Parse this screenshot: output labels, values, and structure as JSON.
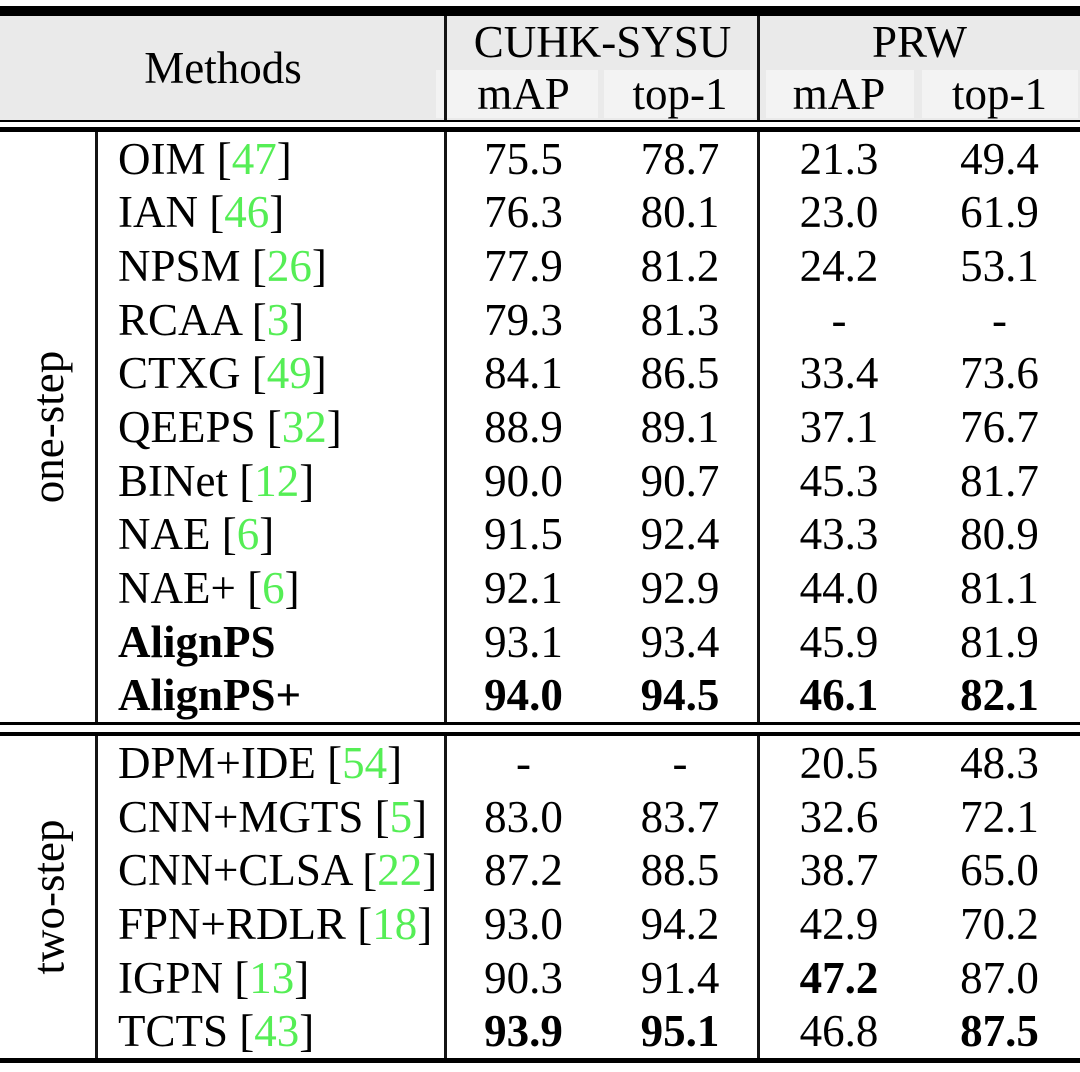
{
  "colors": {
    "citation_green": "#55ee55",
    "header_bg": "#eaeaea",
    "subheader_cell_bg": "#f3f3f3",
    "rule_black": "#000000"
  },
  "table": {
    "header": {
      "methods_label": "Methods",
      "groups": [
        {
          "label": "CUHK-SYSU",
          "sub_labels": [
            "mAP",
            "top-1"
          ]
        },
        {
          "label": "PRW",
          "sub_labels": [
            "mAP",
            "top-1"
          ]
        }
      ]
    },
    "sections": [
      {
        "label": "one-step",
        "rows": [
          {
            "method": "OIM",
            "cite": "47",
            "bold_method": false,
            "values": [
              "75.5",
              "78.7",
              "21.3",
              "49.4"
            ],
            "bold": [
              false,
              false,
              false,
              false
            ]
          },
          {
            "method": "IAN",
            "cite": "46",
            "bold_method": false,
            "values": [
              "76.3",
              "80.1",
              "23.0",
              "61.9"
            ],
            "bold": [
              false,
              false,
              false,
              false
            ]
          },
          {
            "method": "NPSM",
            "cite": "26",
            "bold_method": false,
            "values": [
              "77.9",
              "81.2",
              "24.2",
              "53.1"
            ],
            "bold": [
              false,
              false,
              false,
              false
            ]
          },
          {
            "method": "RCAA",
            "cite": "3",
            "bold_method": false,
            "values": [
              "79.3",
              "81.3",
              "-",
              "-"
            ],
            "bold": [
              false,
              false,
              false,
              false
            ]
          },
          {
            "method": "CTXG",
            "cite": "49",
            "bold_method": false,
            "values": [
              "84.1",
              "86.5",
              "33.4",
              "73.6"
            ],
            "bold": [
              false,
              false,
              false,
              false
            ]
          },
          {
            "method": "QEEPS",
            "cite": "32",
            "bold_method": false,
            "values": [
              "88.9",
              "89.1",
              "37.1",
              "76.7"
            ],
            "bold": [
              false,
              false,
              false,
              false
            ]
          },
          {
            "method": "BINet",
            "cite": "12",
            "bold_method": false,
            "values": [
              "90.0",
              "90.7",
              "45.3",
              "81.7"
            ],
            "bold": [
              false,
              false,
              false,
              false
            ]
          },
          {
            "method": "NAE",
            "cite": "6",
            "bold_method": false,
            "values": [
              "91.5",
              "92.4",
              "43.3",
              "80.9"
            ],
            "bold": [
              false,
              false,
              false,
              false
            ]
          },
          {
            "method": "NAE+",
            "cite": "6",
            "bold_method": false,
            "values": [
              "92.1",
              "92.9",
              "44.0",
              "81.1"
            ],
            "bold": [
              false,
              false,
              false,
              false
            ]
          },
          {
            "method": "AlignPS",
            "cite": null,
            "bold_method": true,
            "values": [
              "93.1",
              "93.4",
              "45.9",
              "81.9"
            ],
            "bold": [
              false,
              false,
              false,
              false
            ]
          },
          {
            "method": "AlignPS+",
            "cite": null,
            "bold_method": true,
            "values": [
              "94.0",
              "94.5",
              "46.1",
              "82.1"
            ],
            "bold": [
              true,
              true,
              true,
              true
            ]
          }
        ]
      },
      {
        "label": "two-step",
        "rows": [
          {
            "method": "DPM+IDE",
            "cite": "54",
            "bold_method": false,
            "values": [
              "-",
              "-",
              "20.5",
              "48.3"
            ],
            "bold": [
              false,
              false,
              false,
              false
            ]
          },
          {
            "method": "CNN+MGTS",
            "cite": "5",
            "bold_method": false,
            "values": [
              "83.0",
              "83.7",
              "32.6",
              "72.1"
            ],
            "bold": [
              false,
              false,
              false,
              false
            ]
          },
          {
            "method": "CNN+CLSA",
            "cite": "22",
            "bold_method": false,
            "values": [
              "87.2",
              "88.5",
              "38.7",
              "65.0"
            ],
            "bold": [
              false,
              false,
              false,
              false
            ]
          },
          {
            "method": "FPN+RDLR",
            "cite": "18",
            "bold_method": false,
            "values": [
              "93.0",
              "94.2",
              "42.9",
              "70.2"
            ],
            "bold": [
              false,
              false,
              false,
              false
            ]
          },
          {
            "method": "IGPN",
            "cite": "13",
            "bold_method": false,
            "values": [
              "90.3",
              "91.4",
              "47.2",
              "87.0"
            ],
            "bold": [
              false,
              false,
              true,
              false
            ]
          },
          {
            "method": "TCTS",
            "cite": "43",
            "bold_method": false,
            "values": [
              "93.9",
              "95.1",
              "46.8",
              "87.5"
            ],
            "bold": [
              true,
              true,
              false,
              true
            ]
          }
        ]
      }
    ]
  }
}
